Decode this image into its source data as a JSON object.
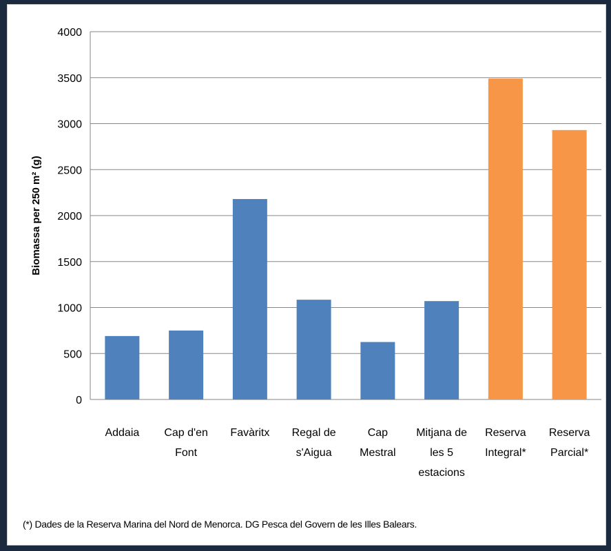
{
  "chart_data": {
    "type": "bar",
    "categories": [
      [
        "Addaia"
      ],
      [
        "Cap d'en",
        "Font"
      ],
      [
        "Favàritx"
      ],
      [
        "Regal de",
        "s'Aigua"
      ],
      [
        "Cap",
        "Mestral"
      ],
      [
        "Mitjana de",
        "les 5",
        "estacions"
      ],
      [
        "Reserva",
        "Integral*"
      ],
      [
        "Reserva",
        "Parcial*"
      ]
    ],
    "values": [
      690,
      750,
      2180,
      1085,
      625,
      1070,
      3490,
      2930
    ],
    "bar_colors": [
      "#4f81bd",
      "#4f81bd",
      "#4f81bd",
      "#4f81bd",
      "#4f81bd",
      "#4f81bd",
      "#f79646",
      "#f79646"
    ],
    "ylabel": "Biomassa per 250 m² (g)",
    "ylim": [
      0,
      4000
    ],
    "yticks": [
      0,
      500,
      1000,
      1500,
      2000,
      2500,
      3000,
      3500,
      4000
    ],
    "grid": true,
    "gridline_color": "#868686"
  },
  "footnote": "(*) Dades de la Reserva Marina del Nord de Menorca. DG Pesca del Govern de les Illes Balears.",
  "colors": {
    "background": "#1c2a40",
    "panel": "#ffffff"
  }
}
